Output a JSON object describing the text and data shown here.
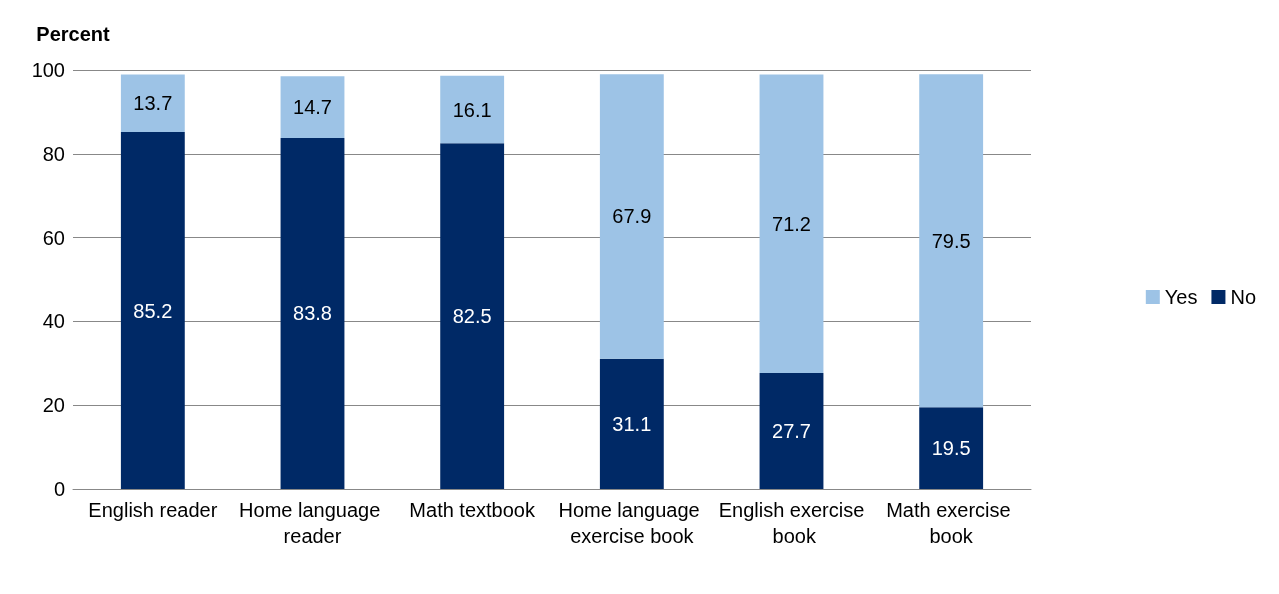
{
  "chart_data": {
    "type": "bar",
    "stacked": true,
    "ylabel": "Percent",
    "categories": [
      "English reader",
      "Home language reader",
      "Math textbook",
      "Home language exercise book",
      "English exercise book",
      "Math exercise book"
    ],
    "series": [
      {
        "name": "No",
        "color": "#002966",
        "values": [
          85.2,
          83.8,
          82.5,
          31.1,
          27.7,
          19.5
        ]
      },
      {
        "name": "Yes",
        "color": "#9dc3e6",
        "values": [
          13.7,
          14.7,
          16.1,
          67.9,
          71.2,
          79.5
        ]
      }
    ],
    "ylim": [
      0,
      100
    ],
    "yticks": [
      0,
      20,
      40,
      60,
      80,
      100
    ],
    "grid": "y",
    "legend": "right",
    "data_labels": true
  }
}
